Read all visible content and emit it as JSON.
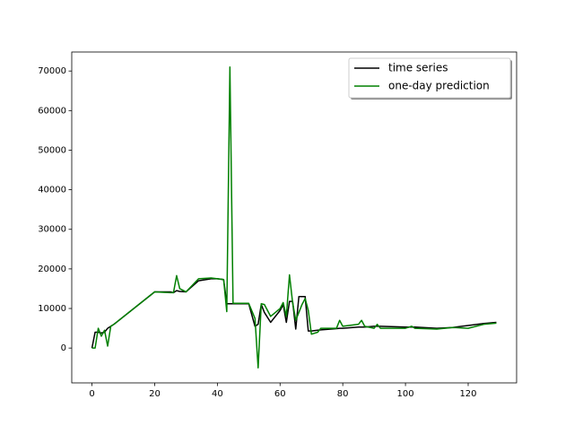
{
  "chart_data": {
    "type": "line",
    "x": [
      0,
      1,
      2,
      3,
      4,
      5,
      6,
      7,
      20,
      25,
      26,
      27,
      28,
      30,
      34,
      38,
      40,
      42,
      43,
      44,
      45,
      50,
      52,
      53,
      54,
      55,
      57,
      60,
      61,
      62,
      63,
      64,
      65,
      66,
      67,
      68,
      69,
      70,
      72,
      73,
      78,
      79,
      80,
      85,
      86,
      87,
      90,
      91,
      92,
      100,
      102,
      103,
      110,
      115,
      120,
      125,
      129
    ],
    "series": [
      {
        "name": "time series",
        "color": "#000000",
        "values": [
          0,
          4000,
          4000,
          3800,
          4000,
          5000,
          5500,
          6000,
          14200,
          14200,
          14000,
          14500,
          14300,
          14200,
          17000,
          17500,
          17500,
          17300,
          11200,
          11200,
          11200,
          11200,
          5500,
          6000,
          11000,
          9000,
          6500,
          9500,
          11000,
          6500,
          11800,
          11800,
          4800,
          13000,
          13000,
          13000,
          4300,
          4300,
          4500,
          4600,
          4900,
          5000,
          5000,
          5300,
          5300,
          5300,
          5500,
          5500,
          5500,
          5300,
          5300,
          5300,
          5000,
          5200,
          5700,
          6200,
          6500
        ]
      },
      {
        "name": "one-day prediction",
        "color": "#008000",
        "values": [
          0,
          0,
          5000,
          3000,
          4500,
          500,
          5500,
          6000,
          14200,
          14000,
          14000,
          18300,
          15000,
          14200,
          17500,
          17700,
          17500,
          17300,
          9200,
          71000,
          11300,
          11300,
          7500,
          -5000,
          11200,
          11000,
          8000,
          10000,
          11500,
          8000,
          18500,
          11500,
          7000,
          9000,
          11000,
          12500,
          9500,
          3500,
          4000,
          5000,
          5000,
          7000,
          5500,
          6000,
          7000,
          5500,
          5000,
          6000,
          5000,
          5000,
          5500,
          5000,
          4800,
          5200,
          5000,
          6000,
          6300
        ]
      }
    ],
    "xlim": [
      -6.45,
      135.45
    ],
    "xticks": [
      0,
      20,
      40,
      60,
      80,
      100,
      120
    ],
    "ylim": [
      -8800,
      74800
    ],
    "yticks": [
      0,
      10000,
      20000,
      30000,
      40000,
      50000,
      60000,
      70000
    ],
    "legend": "upper right"
  }
}
